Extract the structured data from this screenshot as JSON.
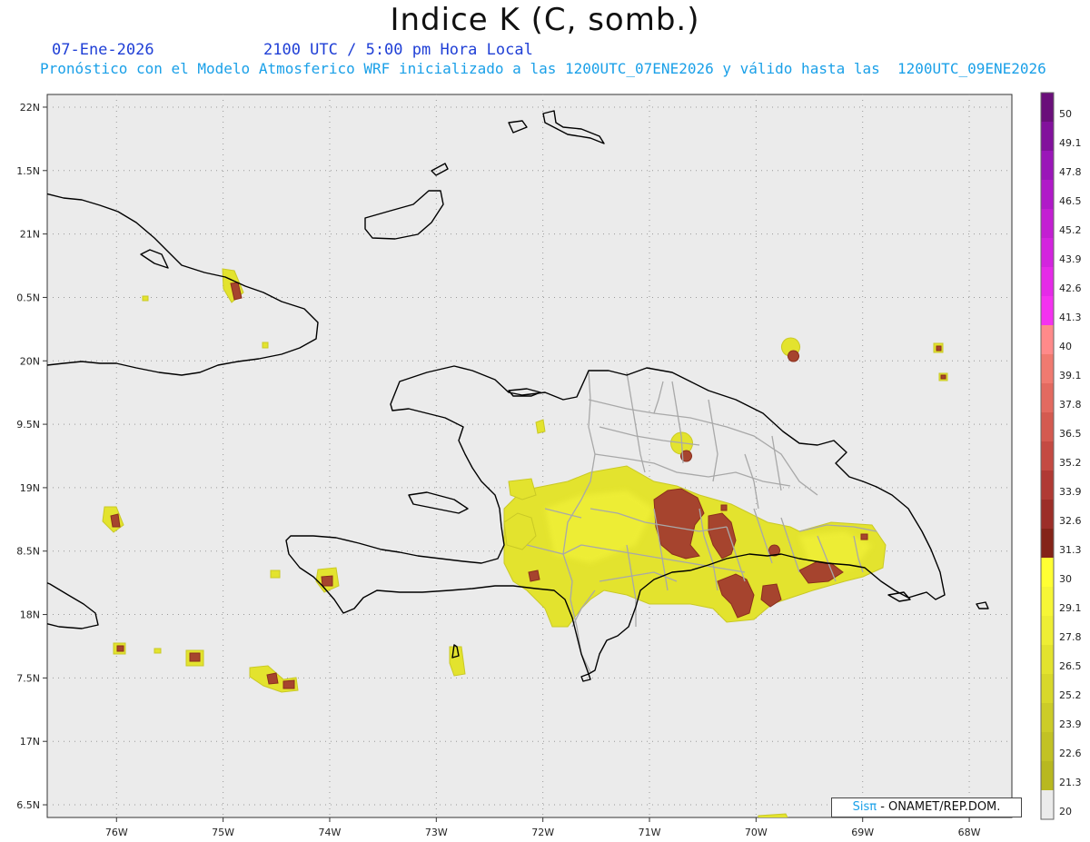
{
  "title": "Indice K (C, somb.)",
  "date_label": "07-Ene-2026",
  "time_label": "2100 UTC / 5:00 pm Hora Local",
  "forecast_label": "Pronóstico con el Modelo Atmosferico WRF inicializado a las 1200UTC_07ENE2026 y válido hasta las  1200UTC_09ENE2026",
  "credit": {
    "logo": "Sisπ",
    "text": " - ONAMET/REP.DOM."
  },
  "map": {
    "lon_range": [
      -76.65,
      -67.6
    ],
    "lat_range": [
      16.4,
      22.1
    ],
    "lat_ticks": [
      "22N",
      "1.5N",
      "21N",
      "0.5N",
      "20N",
      "9.5N",
      "19N",
      "8.5N",
      "18N",
      "7.5N",
      "17N",
      "6.5N"
    ],
    "lon_ticks": [
      "76W",
      "75W",
      "74W",
      "73W",
      "72W",
      "71W",
      "70W",
      "69W",
      "68W"
    ],
    "background_color": "#ebebeb",
    "coast_color": "#000000",
    "border_color": "#a8a8a8"
  },
  "colorbar": {
    "labels": [
      "50",
      "49.1",
      "47.8",
      "46.5",
      "45.2",
      "43.9",
      "42.6",
      "41.3",
      "40",
      "39.1",
      "37.8",
      "36.5",
      "35.2",
      "33.9",
      "32.6",
      "31.3",
      "30",
      "29.1",
      "27.8",
      "26.5",
      "25.2",
      "23.9",
      "22.6",
      "21.3",
      "20"
    ],
    "colors": [
      "#6a0f7a",
      "#82119c",
      "#9a16b8",
      "#b01ac8",
      "#c31fd2",
      "#d324de",
      "#e52ae8",
      "#f432f0",
      "#ff8a8a",
      "#f07a70",
      "#e36a60",
      "#d45a50",
      "#c44a42",
      "#b03a34",
      "#9c2e28",
      "#842418",
      "#ffff33",
      "#f6f636",
      "#eeee34",
      "#e3e32e",
      "#d8d82a",
      "#cccc28",
      "#c2c224",
      "#b8b820",
      "#ebebeb"
    ]
  }
}
